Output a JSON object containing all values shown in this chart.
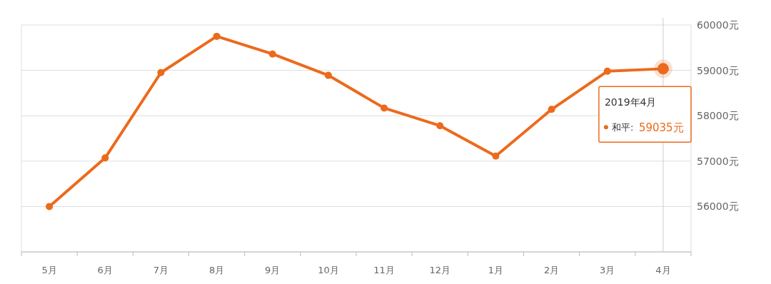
{
  "chart_data": {
    "type": "line",
    "categories": [
      "5月",
      "6月",
      "7月",
      "8月",
      "9月",
      "10月",
      "11月",
      "12月",
      "1月",
      "2月",
      "3月",
      "4月"
    ],
    "series": [
      {
        "color": "#ec6a1c",
        "values": [
          56000,
          57070,
          58950,
          59750,
          59360,
          58890,
          58170,
          57780,
          57110,
          58140,
          58980,
          59035
        ]
      }
    ],
    "ylim": [
      55000,
      60000
    ],
    "yticks": [
      {
        "value": 55000,
        "label": null
      },
      {
        "value": 56000,
        "label": "56000元"
      },
      {
        "value": 57000,
        "label": "57000元"
      },
      {
        "value": 58000,
        "label": "58000元"
      },
      {
        "value": 59000,
        "label": "59000元"
      },
      {
        "value": 60000,
        "label": "60000元"
      }
    ],
    "grid": "y",
    "marker": "circle",
    "line_style": "solid",
    "ref_lines": [
      {
        "axis": "x",
        "value": "4月",
        "color": "#cccccc"
      }
    ],
    "annotations": [
      {
        "text": "2019年4月",
        "x": "4月",
        "y": 59035
      },
      "和平:",
      "59035元"
    ]
  }
}
